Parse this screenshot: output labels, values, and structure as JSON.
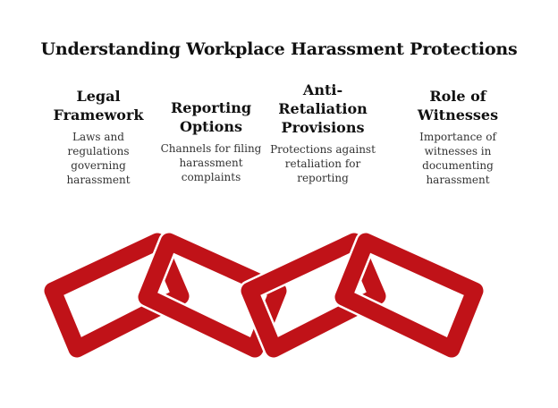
{
  "title": "Understanding Workplace Harassment Protections",
  "columns": [
    {
      "heading": "Legal\nFramework",
      "description": "Laws and\nregulations\ngoverning\nharassment"
    },
    {
      "heading": "Reporting\nOptions",
      "description": "Channels for filing\nharassment\ncomplaints"
    },
    {
      "heading": "Anti-\nRetaliation\nProvisions",
      "description": "Protections against\nretaliation for\nreporting"
    },
    {
      "heading": "Role of\nWitnesses",
      "description": "Importance of\nwitnesses in\ndocumenting\nharassment"
    }
  ],
  "colors": {
    "chain": "#c01218",
    "gap": "#ffffff"
  },
  "chain_icon": "chain-links-icon"
}
